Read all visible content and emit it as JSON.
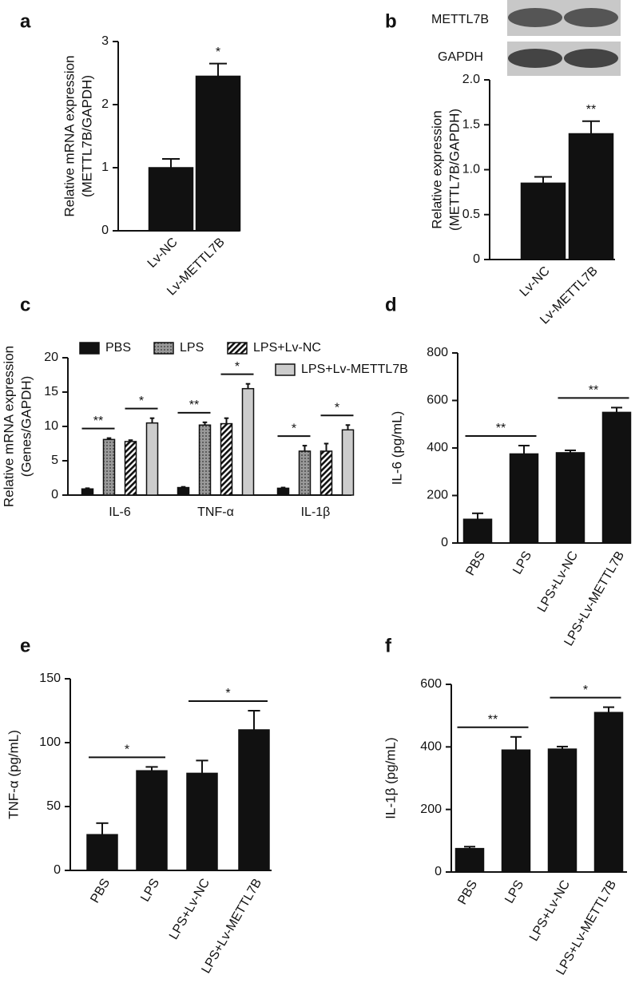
{
  "chart_data": [
    {
      "panel": "a",
      "type": "bar",
      "ylabel": [
        "Relative mRNA expression",
        "(METTL7B/GAPDH)"
      ],
      "categories": [
        "Lv-NC",
        "Lv-METTL7B"
      ],
      "values": [
        1.0,
        2.45
      ],
      "errors": [
        0.14,
        0.2
      ],
      "color": "#111111",
      "ylim": [
        0,
        3
      ],
      "yticks": [
        0,
        1,
        2,
        3
      ],
      "annotations": [
        "*"
      ]
    },
    {
      "panel": "b",
      "type": "bar",
      "blot_labels": [
        "METTL7B",
        "GAPDH"
      ],
      "ylabel": [
        "Relative expression",
        "(METTL7B/GAPDH)"
      ],
      "categories": [
        "Lv-NC",
        "Lv-METTL7B"
      ],
      "values": [
        0.85,
        1.4
      ],
      "errors": [
        0.07,
        0.14
      ],
      "color": "#111111",
      "ylim": [
        0,
        2
      ],
      "yticks": [
        0,
        0.5,
        {
          "value": 1,
          "label": "1.0"
        },
        1.5,
        {
          "value": 2,
          "label": "2.0"
        }
      ],
      "annotations": [
        "**"
      ]
    },
    {
      "panel": "c",
      "type": "grouped_bar",
      "ylabel": [
        "Relative mRNA expression",
        "(Genes/GAPDH)"
      ],
      "categories": [
        "IL-6",
        "TNF-α",
        "IL-1β"
      ],
      "series": [
        {
          "name": "PBS",
          "color": "#111111",
          "pattern": "solid",
          "values": [
            0.9,
            1.1,
            1.0
          ],
          "errors": [
            0.1,
            0.1,
            0.1
          ]
        },
        {
          "name": "LPS",
          "color": "#888888",
          "pattern": "dots",
          "values": [
            8.1,
            10.2,
            6.4
          ],
          "errors": [
            0.2,
            0.4,
            0.8
          ]
        },
        {
          "name": "LPS+Lv-NC",
          "color": "#111111",
          "pattern": "hatch",
          "values": [
            7.8,
            10.4,
            6.4
          ],
          "errors": [
            0.2,
            0.8,
            1.1
          ]
        },
        {
          "name": "LPS+Lv-METTL7B",
          "color": "#cccccc",
          "pattern": "solid",
          "values": [
            10.5,
            15.5,
            9.5
          ],
          "errors": [
            0.7,
            0.7,
            0.7
          ]
        }
      ],
      "ylim": [
        0,
        20
      ],
      "yticks": [
        0,
        5,
        10,
        15,
        20
      ],
      "annotations": [
        "**",
        "*",
        "**",
        "*",
        "*",
        "*"
      ]
    },
    {
      "panel": "d",
      "type": "bar",
      "ylabel": [
        "IL-6 (pg/mL)"
      ],
      "categories": [
        "PBS",
        "LPS",
        "LPS+Lv-NC",
        "LPS+Lv-METTL7B"
      ],
      "values": [
        100,
        375,
        380,
        550
      ],
      "errors": [
        25,
        35,
        10,
        20
      ],
      "color": "#111111",
      "ylim": [
        0,
        800
      ],
      "yticks": [
        0,
        200,
        400,
        600,
        800
      ],
      "annotations": [
        "**",
        "**"
      ]
    },
    {
      "panel": "e",
      "type": "bar",
      "ylabel": [
        "TNF-α (pg/mL)"
      ],
      "categories": [
        "PBS",
        "LPS",
        "LPS+Lv-NC",
        "LPS+Lv-METTL7B"
      ],
      "values": [
        28,
        78,
        76,
        110
      ],
      "errors": [
        9,
        3,
        10,
        15
      ],
      "color": "#111111",
      "ylim": [
        0,
        150
      ],
      "yticks": [
        0,
        50,
        100,
        150
      ],
      "annotations": [
        "*",
        "*"
      ]
    },
    {
      "panel": "f",
      "type": "bar",
      "ylabel": [
        "IL-1β  (pg/mL)"
      ],
      "categories": [
        "PBS",
        "LPS",
        "LPS+Lv-NC",
        "LPS+Lv-METTL7B"
      ],
      "values": [
        75,
        390,
        393,
        510
      ],
      "errors": [
        6,
        42,
        8,
        17
      ],
      "color": "#111111",
      "ylim": [
        0,
        600
      ],
      "yticks": [
        0,
        200,
        400,
        600
      ],
      "annotations": [
        "**",
        "*"
      ]
    }
  ]
}
